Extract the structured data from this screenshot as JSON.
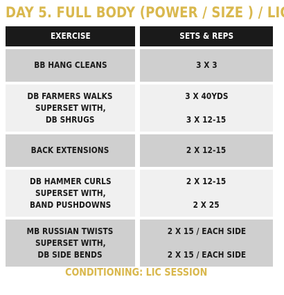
{
  "title": "DAY 5. FULL BODY (POWER / SIZE ) / LIC",
  "table": {
    "headers": [
      "EXERCISE",
      "SETS & REPS"
    ],
    "rows": [
      {
        "exercise": [
          "BB HANG CLEANS"
        ],
        "sets": [
          "3 X 3"
        ]
      },
      {
        "exercise": [
          "DB FARMERS WALKS",
          "SUPERSET WITH,",
          "DB SHRUGS"
        ],
        "sets": [
          "3 X 40YDS",
          "3 X 12-15"
        ]
      },
      {
        "exercise": [
          "BACK EXTENSIONS"
        ],
        "sets": [
          "2 X 12-15"
        ]
      },
      {
        "exercise": [
          "DB HAMMER CURLS",
          "SUPERSET WITH,",
          "BAND PUSHDOWNS"
        ],
        "sets": [
          "2 X 12-15",
          "2 X 25"
        ]
      },
      {
        "exercise": [
          "MB RUSSIAN TWISTS",
          "SUPERSET WITH,",
          "DB SIDE BENDS"
        ],
        "sets": [
          "2 X 15 / EACH SIDE",
          "2 X 15 / EACH SIDE"
        ]
      }
    ]
  },
  "footer": "CONDITIONING: LIC SESSION",
  "colors": {
    "accent": "#d9b84e",
    "header_bg": "#1a1a1a",
    "row_shaded": "#cfcfcf",
    "row_light": "#f0f0f0"
  }
}
